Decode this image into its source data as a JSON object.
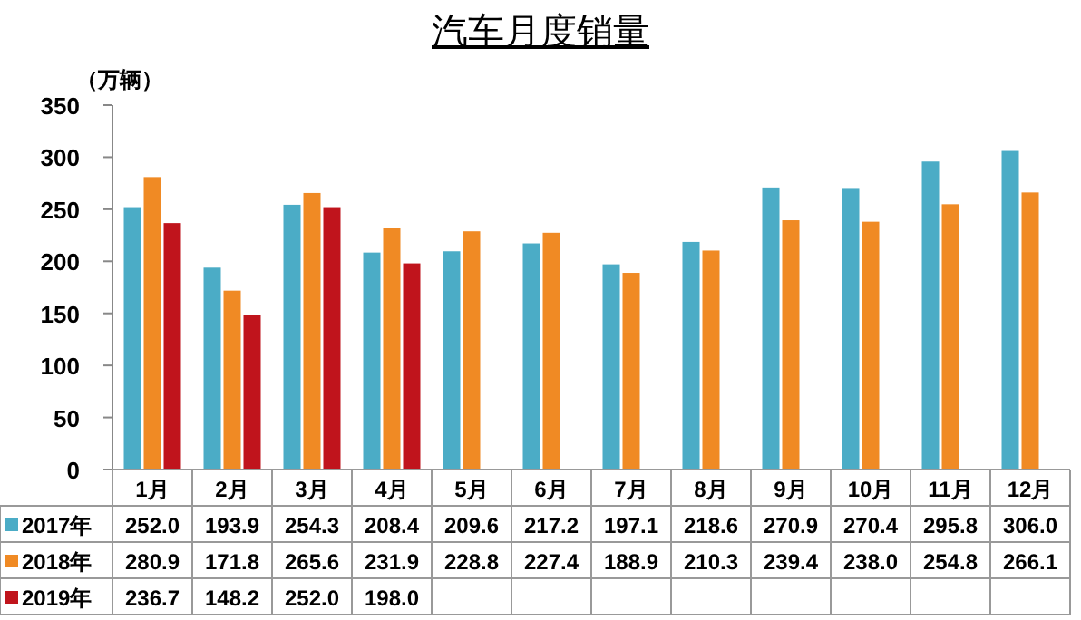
{
  "chart_data": {
    "type": "bar",
    "title": "汽车月度销量",
    "ylabel": "（万辆）",
    "categories": [
      "1月",
      "2月",
      "3月",
      "4月",
      "5月",
      "6月",
      "7月",
      "8月",
      "9月",
      "10月",
      "11月",
      "12月"
    ],
    "series": [
      {
        "name": "2017年",
        "color": "#4bacc6",
        "values": [
          252.0,
          193.9,
          254.3,
          208.4,
          209.6,
          217.2,
          197.1,
          218.6,
          270.9,
          270.4,
          295.8,
          306.0
        ],
        "value_labels": [
          "252.0",
          "193.9",
          "254.3",
          "208.4",
          "209.6",
          "217.2",
          "197.1",
          "218.6",
          "270.9",
          "270.4",
          "295.8",
          "306.0"
        ]
      },
      {
        "name": "2018年",
        "color": "#f08a24",
        "values": [
          280.9,
          171.8,
          265.6,
          231.9,
          228.8,
          227.4,
          188.9,
          210.3,
          239.4,
          238.0,
          254.8,
          266.1
        ],
        "value_labels": [
          "280.9",
          "171.8",
          "265.6",
          "231.9",
          "228.8",
          "227.4",
          "188.9",
          "210.3",
          "239.4",
          "238.0",
          "254.8",
          "266.1"
        ]
      },
      {
        "name": "2019年",
        "color": "#c0141c",
        "values": [
          236.7,
          148.2,
          252.0,
          198.0,
          null,
          null,
          null,
          null,
          null,
          null,
          null,
          null
        ],
        "value_labels": [
          "236.7",
          "148.2",
          "252.0",
          "198.0",
          null,
          null,
          null,
          null,
          null,
          null,
          null,
          null
        ]
      }
    ],
    "ylim": [
      0,
      350
    ],
    "yticks": [
      0,
      50,
      100,
      150,
      200,
      250,
      300,
      350
    ],
    "grid": false,
    "legend": "bottom"
  }
}
